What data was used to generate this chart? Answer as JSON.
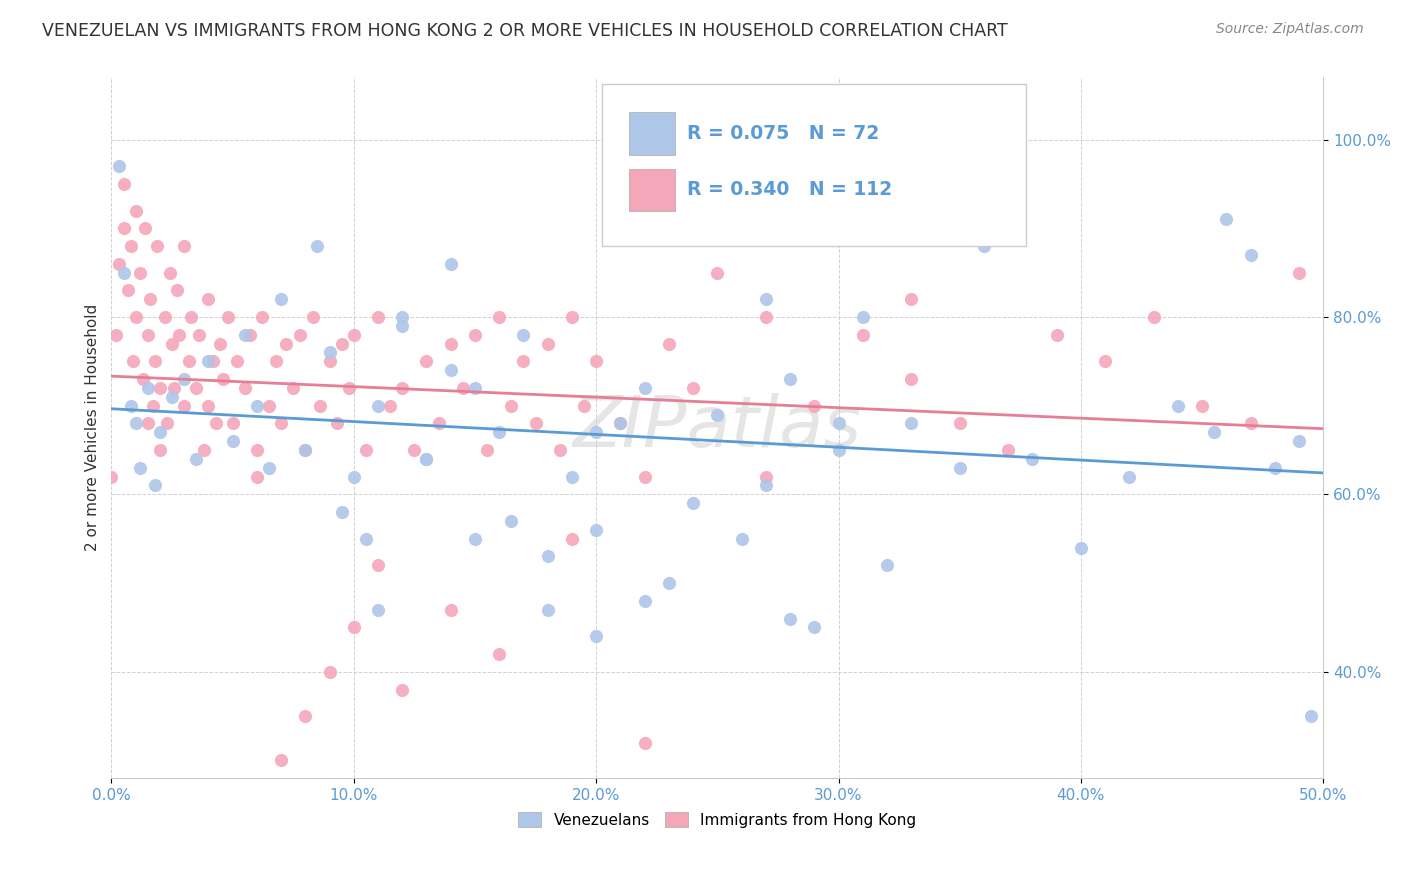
{
  "title": "VENEZUELAN VS IMMIGRANTS FROM HONG KONG 2 OR MORE VEHICLES IN HOUSEHOLD CORRELATION CHART",
  "source": "Source: ZipAtlas.com",
  "ylabel": "2 or more Vehicles in Household",
  "legend_entries": [
    {
      "label": "Venezuelans",
      "color": "#aec6e8",
      "R": "0.075",
      "N": "72"
    },
    {
      "label": "Immigrants from Hong Kong",
      "color": "#f4a7b9",
      "R": "0.340",
      "N": "112"
    }
  ],
  "watermark": "ZIPatlas",
  "blue_scatter_color": "#aec6e8",
  "pink_scatter_color": "#f4a7b9",
  "blue_line_color": "#5b9bd5",
  "pink_line_color": "#e87d96",
  "tick_color": "#5b9bd5",
  "background_color": "#ffffff",
  "grid_color": "#cccccc",
  "xlim": [
    0.0,
    0.5
  ],
  "ylim": [
    0.28,
    1.07
  ],
  "xticks": [
    0.0,
    0.1,
    0.2,
    0.3,
    0.4,
    0.5
  ],
  "xticklabels": [
    "0.0%",
    "10.0%",
    "20.0%",
    "30.0%",
    "40.0%",
    "50.0%"
  ],
  "yticks": [
    0.4,
    0.6,
    0.8,
    1.0
  ],
  "yticklabels": [
    "40.0%",
    "60.0%",
    "80.0%",
    "100.0%"
  ],
  "blue_scatter_x": [
    0.003,
    0.005,
    0.008,
    0.01,
    0.012,
    0.015,
    0.018,
    0.02,
    0.025,
    0.03,
    0.035,
    0.04,
    0.05,
    0.055,
    0.06,
    0.065,
    0.07,
    0.08,
    0.085,
    0.09,
    0.095,
    0.1,
    0.11,
    0.12,
    0.13,
    0.14,
    0.15,
    0.16,
    0.17,
    0.19,
    0.2,
    0.21,
    0.22,
    0.23,
    0.25,
    0.27,
    0.28,
    0.29,
    0.3,
    0.32,
    0.33,
    0.35,
    0.36,
    0.38,
    0.4,
    0.42,
    0.44,
    0.455,
    0.46,
    0.47,
    0.48,
    0.49,
    0.495,
    0.31,
    0.28,
    0.27,
    0.24,
    0.22,
    0.2,
    0.18,
    0.165,
    0.15,
    0.14,
    0.13,
    0.12,
    0.11,
    0.105,
    0.3,
    0.26,
    0.22,
    0.2,
    0.18
  ],
  "blue_scatter_y": [
    0.97,
    0.85,
    0.7,
    0.68,
    0.63,
    0.72,
    0.61,
    0.67,
    0.71,
    0.73,
    0.64,
    0.75,
    0.66,
    0.78,
    0.7,
    0.63,
    0.82,
    0.65,
    0.88,
    0.76,
    0.58,
    0.62,
    0.7,
    0.8,
    0.64,
    0.74,
    0.55,
    0.67,
    0.78,
    0.62,
    0.56,
    0.68,
    0.72,
    0.5,
    0.69,
    0.61,
    0.73,
    0.45,
    0.65,
    0.52,
    0.68,
    0.63,
    0.88,
    0.64,
    0.54,
    0.62,
    0.7,
    0.67,
    0.91,
    0.87,
    0.63,
    0.66,
    0.35,
    0.8,
    0.46,
    0.82,
    0.59,
    0.9,
    0.67,
    0.47,
    0.57,
    0.72,
    0.86,
    0.64,
    0.79,
    0.47,
    0.55,
    0.68,
    0.55,
    0.48,
    0.44,
    0.53
  ],
  "pink_scatter_x": [
    0.0,
    0.002,
    0.003,
    0.005,
    0.005,
    0.007,
    0.008,
    0.009,
    0.01,
    0.01,
    0.012,
    0.013,
    0.014,
    0.015,
    0.015,
    0.016,
    0.017,
    0.018,
    0.019,
    0.02,
    0.02,
    0.022,
    0.023,
    0.024,
    0.025,
    0.026,
    0.027,
    0.028,
    0.03,
    0.03,
    0.032,
    0.033,
    0.035,
    0.036,
    0.038,
    0.04,
    0.04,
    0.042,
    0.043,
    0.045,
    0.046,
    0.048,
    0.05,
    0.052,
    0.055,
    0.057,
    0.06,
    0.062,
    0.065,
    0.068,
    0.07,
    0.072,
    0.075,
    0.078,
    0.08,
    0.083,
    0.086,
    0.09,
    0.093,
    0.095,
    0.098,
    0.1,
    0.105,
    0.11,
    0.115,
    0.12,
    0.125,
    0.13,
    0.135,
    0.14,
    0.145,
    0.15,
    0.155,
    0.16,
    0.165,
    0.17,
    0.175,
    0.18,
    0.185,
    0.19,
    0.195,
    0.2,
    0.21,
    0.22,
    0.23,
    0.24,
    0.25,
    0.27,
    0.29,
    0.31,
    0.33,
    0.35,
    0.37,
    0.39,
    0.41,
    0.43,
    0.45,
    0.47,
    0.49,
    0.33,
    0.27,
    0.22,
    0.19,
    0.16,
    0.14,
    0.12,
    0.11,
    0.1,
    0.09,
    0.08,
    0.07,
    0.06
  ],
  "pink_scatter_y": [
    0.62,
    0.78,
    0.86,
    0.9,
    0.95,
    0.83,
    0.88,
    0.75,
    0.92,
    0.8,
    0.85,
    0.73,
    0.9,
    0.68,
    0.78,
    0.82,
    0.7,
    0.75,
    0.88,
    0.65,
    0.72,
    0.8,
    0.68,
    0.85,
    0.77,
    0.72,
    0.83,
    0.78,
    0.7,
    0.88,
    0.75,
    0.8,
    0.72,
    0.78,
    0.65,
    0.82,
    0.7,
    0.75,
    0.68,
    0.77,
    0.73,
    0.8,
    0.68,
    0.75,
    0.72,
    0.78,
    0.65,
    0.8,
    0.7,
    0.75,
    0.68,
    0.77,
    0.72,
    0.78,
    0.65,
    0.8,
    0.7,
    0.75,
    0.68,
    0.77,
    0.72,
    0.78,
    0.65,
    0.8,
    0.7,
    0.72,
    0.65,
    0.75,
    0.68,
    0.77,
    0.72,
    0.78,
    0.65,
    0.8,
    0.7,
    0.75,
    0.68,
    0.77,
    0.65,
    0.8,
    0.7,
    0.75,
    0.68,
    0.62,
    0.77,
    0.72,
    0.85,
    0.8,
    0.7,
    0.78,
    0.73,
    0.68,
    0.65,
    0.78,
    0.75,
    0.8,
    0.7,
    0.68,
    0.85,
    0.82,
    0.62,
    0.32,
    0.55,
    0.42,
    0.47,
    0.38,
    0.52,
    0.45,
    0.4,
    0.35,
    0.3,
    0.62
  ]
}
